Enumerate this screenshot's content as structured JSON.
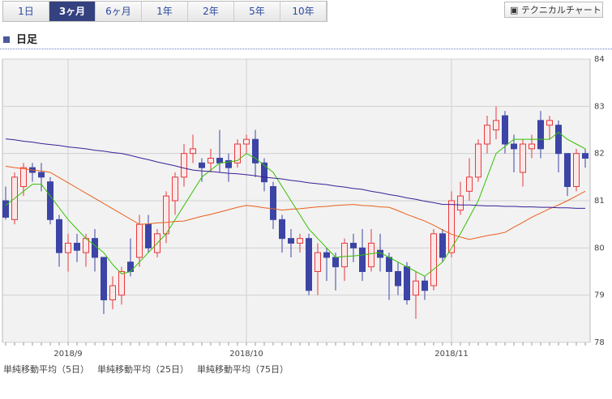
{
  "tabs": [
    "1日",
    "3ヶ月",
    "6ヶ月",
    "1年",
    "2年",
    "5年",
    "10年"
  ],
  "active_tab": 1,
  "button": "テクニカルチャート",
  "section_title": "日足",
  "chart_data": {
    "type": "candlestick",
    "up_color": "#e8383d",
    "down_color": "#3c44a6",
    "grid": true,
    "categories": [
      null,
      null,
      null,
      null,
      null,
      null,
      null,
      "2018/9",
      null,
      null,
      null,
      null,
      null,
      null,
      null,
      null,
      null,
      null,
      null,
      null,
      null,
      null,
      null,
      null,
      null,
      null,
      null,
      "2018/10",
      null,
      null,
      null,
      null,
      null,
      null,
      null,
      null,
      null,
      null,
      null,
      null,
      null,
      null,
      null,
      null,
      null,
      null,
      null,
      null,
      null,
      null,
      "2018/11",
      null,
      null,
      null,
      null,
      null,
      null,
      null,
      null,
      null,
      null,
      null,
      null,
      null,
      null,
      null
    ],
    "open": [
      81.0,
      80.6,
      81.3,
      81.7,
      81.6,
      81.4,
      80.6,
      79.9,
      80.1,
      79.9,
      80.2,
      79.8,
      78.9,
      79.0,
      79.7,
      79.8,
      80.5,
      79.9,
      80.3,
      81.0,
      81.5,
      82.0,
      81.8,
      81.8,
      81.9,
      81.85,
      81.8,
      82.2,
      82.3,
      81.8,
      81.3,
      80.6,
      80.2,
      80.1,
      80.2,
      79.5,
      79.9,
      79.8,
      79.6,
      80.1,
      80.0,
      79.6,
      79.95,
      79.8,
      79.5,
      79.6,
      79.0,
      79.3,
      79.2,
      80.3,
      79.9,
      80.8,
      81.2,
      81.5,
      82.2,
      82.5,
      82.8,
      82.2,
      81.6,
      82.1,
      82.7,
      82.6,
      82.6,
      82.0,
      81.3,
      82.0
    ],
    "high": [
      81.3,
      81.6,
      81.8,
      81.8,
      81.8,
      81.5,
      80.7,
      80.3,
      80.3,
      80.3,
      80.4,
      79.8,
      79.4,
      79.6,
      80.2,
      80.7,
      80.7,
      80.4,
      81.2,
      81.6,
      82.2,
      82.4,
      81.9,
      82.1,
      82.5,
      82.0,
      82.3,
      82.4,
      82.5,
      81.9,
      81.4,
      80.7,
      80.4,
      80.3,
      80.3,
      80.1,
      80.0,
      79.9,
      80.2,
      80.3,
      80.4,
      80.4,
      80.3,
      79.9,
      79.7,
      79.7,
      79.5,
      79.4,
      80.4,
      80.4,
      81.2,
      81.4,
      81.9,
      82.3,
      82.8,
      83.0,
      82.9,
      82.4,
      82.3,
      82.4,
      82.9,
      82.8,
      82.7,
      82.0,
      82.1,
      82.1
    ],
    "low": [
      80.6,
      80.5,
      81.1,
      81.4,
      81.2,
      80.5,
      79.6,
      79.5,
      79.7,
      79.6,
      79.5,
      78.6,
      78.7,
      78.8,
      79.4,
      79.6,
      79.9,
      79.8,
      80.1,
      80.7,
      81.3,
      81.8,
      81.4,
      81.6,
      81.6,
      81.4,
      81.7,
      82.0,
      81.5,
      81.2,
      80.4,
      79.9,
      79.8,
      79.9,
      79.0,
      79.0,
      79.3,
      79.1,
      79.3,
      79.7,
      79.3,
      79.5,
      79.5,
      78.9,
      79.0,
      78.8,
      78.5,
      78.9,
      79.1,
      79.7,
      79.8,
      80.7,
      81.0,
      81.4,
      82.0,
      82.3,
      82.0,
      81.6,
      81.3,
      81.9,
      81.9,
      82.3,
      81.6,
      81.1,
      81.2,
      81.7
    ],
    "close": [
      80.65,
      81.5,
      81.7,
      81.6,
      81.5,
      80.6,
      79.9,
      80.1,
      79.95,
      80.2,
      79.8,
      78.9,
      79.2,
      79.5,
      79.5,
      80.5,
      80.0,
      80.3,
      81.1,
      81.5,
      82.0,
      82.1,
      81.7,
      81.9,
      81.8,
      81.7,
      82.2,
      82.3,
      81.8,
      81.4,
      80.6,
      80.2,
      80.1,
      80.2,
      79.1,
      79.9,
      79.8,
      79.6,
      80.1,
      80.0,
      79.5,
      80.1,
      79.8,
      79.5,
      79.2,
      78.9,
      79.3,
      79.1,
      80.3,
      79.8,
      81.0,
      81.1,
      81.5,
      82.2,
      82.6,
      82.7,
      82.2,
      82.1,
      82.2,
      82.2,
      82.1,
      82.7,
      82.0,
      81.3,
      82.0,
      81.9
    ],
    "series": [
      {
        "name": "単純移動平均（5日）",
        "color": "#33c200",
        "values": [
          80.9,
          81.05,
          81.2,
          81.35,
          81.35,
          81.1,
          80.85,
          80.6,
          80.4,
          80.2,
          80.05,
          79.9,
          79.65,
          79.45,
          79.5,
          79.7,
          79.9,
          80.1,
          80.3,
          80.6,
          80.9,
          81.2,
          81.5,
          81.65,
          81.8,
          81.82,
          81.85,
          82.0,
          81.9,
          81.75,
          81.6,
          81.3,
          81.0,
          80.7,
          80.4,
          80.2,
          80.0,
          79.8,
          79.82,
          79.83,
          79.85,
          79.88,
          79.9,
          79.8,
          79.7,
          79.6,
          79.5,
          79.4,
          79.55,
          79.7,
          80.0,
          80.3,
          80.65,
          81.0,
          81.5,
          82.0,
          82.15,
          82.3,
          82.3,
          82.3,
          82.3,
          82.3,
          82.45,
          82.3,
          82.2,
          82.1
        ]
      },
      {
        "name": "単純移動平均（25日）",
        "color": "#e8601c",
        "values": [
          81.73,
          81.7,
          81.68,
          81.65,
          81.63,
          81.6,
          81.49,
          81.38,
          81.27,
          81.16,
          81.05,
          80.94,
          80.83,
          80.72,
          80.61,
          80.5,
          80.51,
          80.53,
          80.54,
          80.56,
          80.57,
          80.62,
          80.67,
          80.71,
          80.76,
          80.81,
          80.86,
          80.9,
          80.88,
          80.85,
          80.83,
          80.8,
          80.82,
          80.83,
          80.85,
          80.87,
          80.88,
          80.9,
          80.91,
          80.92,
          80.9,
          80.89,
          80.87,
          80.86,
          80.79,
          80.71,
          80.64,
          80.57,
          80.48,
          80.38,
          80.29,
          80.23,
          80.18,
          80.22,
          80.26,
          80.29,
          80.33,
          80.44,
          80.54,
          80.65,
          80.74,
          80.83,
          80.91,
          81.0,
          81.1,
          81.2
        ]
      },
      {
        "name": "単純移動平均（75日）",
        "color": "#3a1e96",
        "values": [
          82.31,
          82.29,
          82.26,
          82.24,
          82.21,
          82.19,
          82.17,
          82.14,
          82.12,
          82.1,
          82.07,
          82.05,
          82.02,
          82.0,
          81.96,
          81.91,
          81.87,
          81.82,
          81.78,
          81.74,
          81.69,
          81.65,
          81.63,
          81.62,
          81.6,
          81.58,
          81.57,
          81.55,
          81.53,
          81.5,
          81.48,
          81.46,
          81.43,
          81.41,
          81.38,
          81.36,
          81.34,
          81.31,
          81.29,
          81.26,
          81.24,
          81.2,
          81.17,
          81.13,
          81.1,
          81.06,
          81.03,
          80.99,
          80.96,
          80.92,
          80.92,
          80.91,
          80.91,
          80.9,
          80.89,
          80.89,
          80.88,
          80.88,
          80.87,
          80.87,
          80.86,
          80.86,
          80.85,
          80.85,
          80.84,
          80.84
        ]
      }
    ],
    "ylim": [
      78,
      84
    ],
    "yticks": [
      78,
      79,
      80,
      81,
      82,
      83,
      84
    ]
  }
}
